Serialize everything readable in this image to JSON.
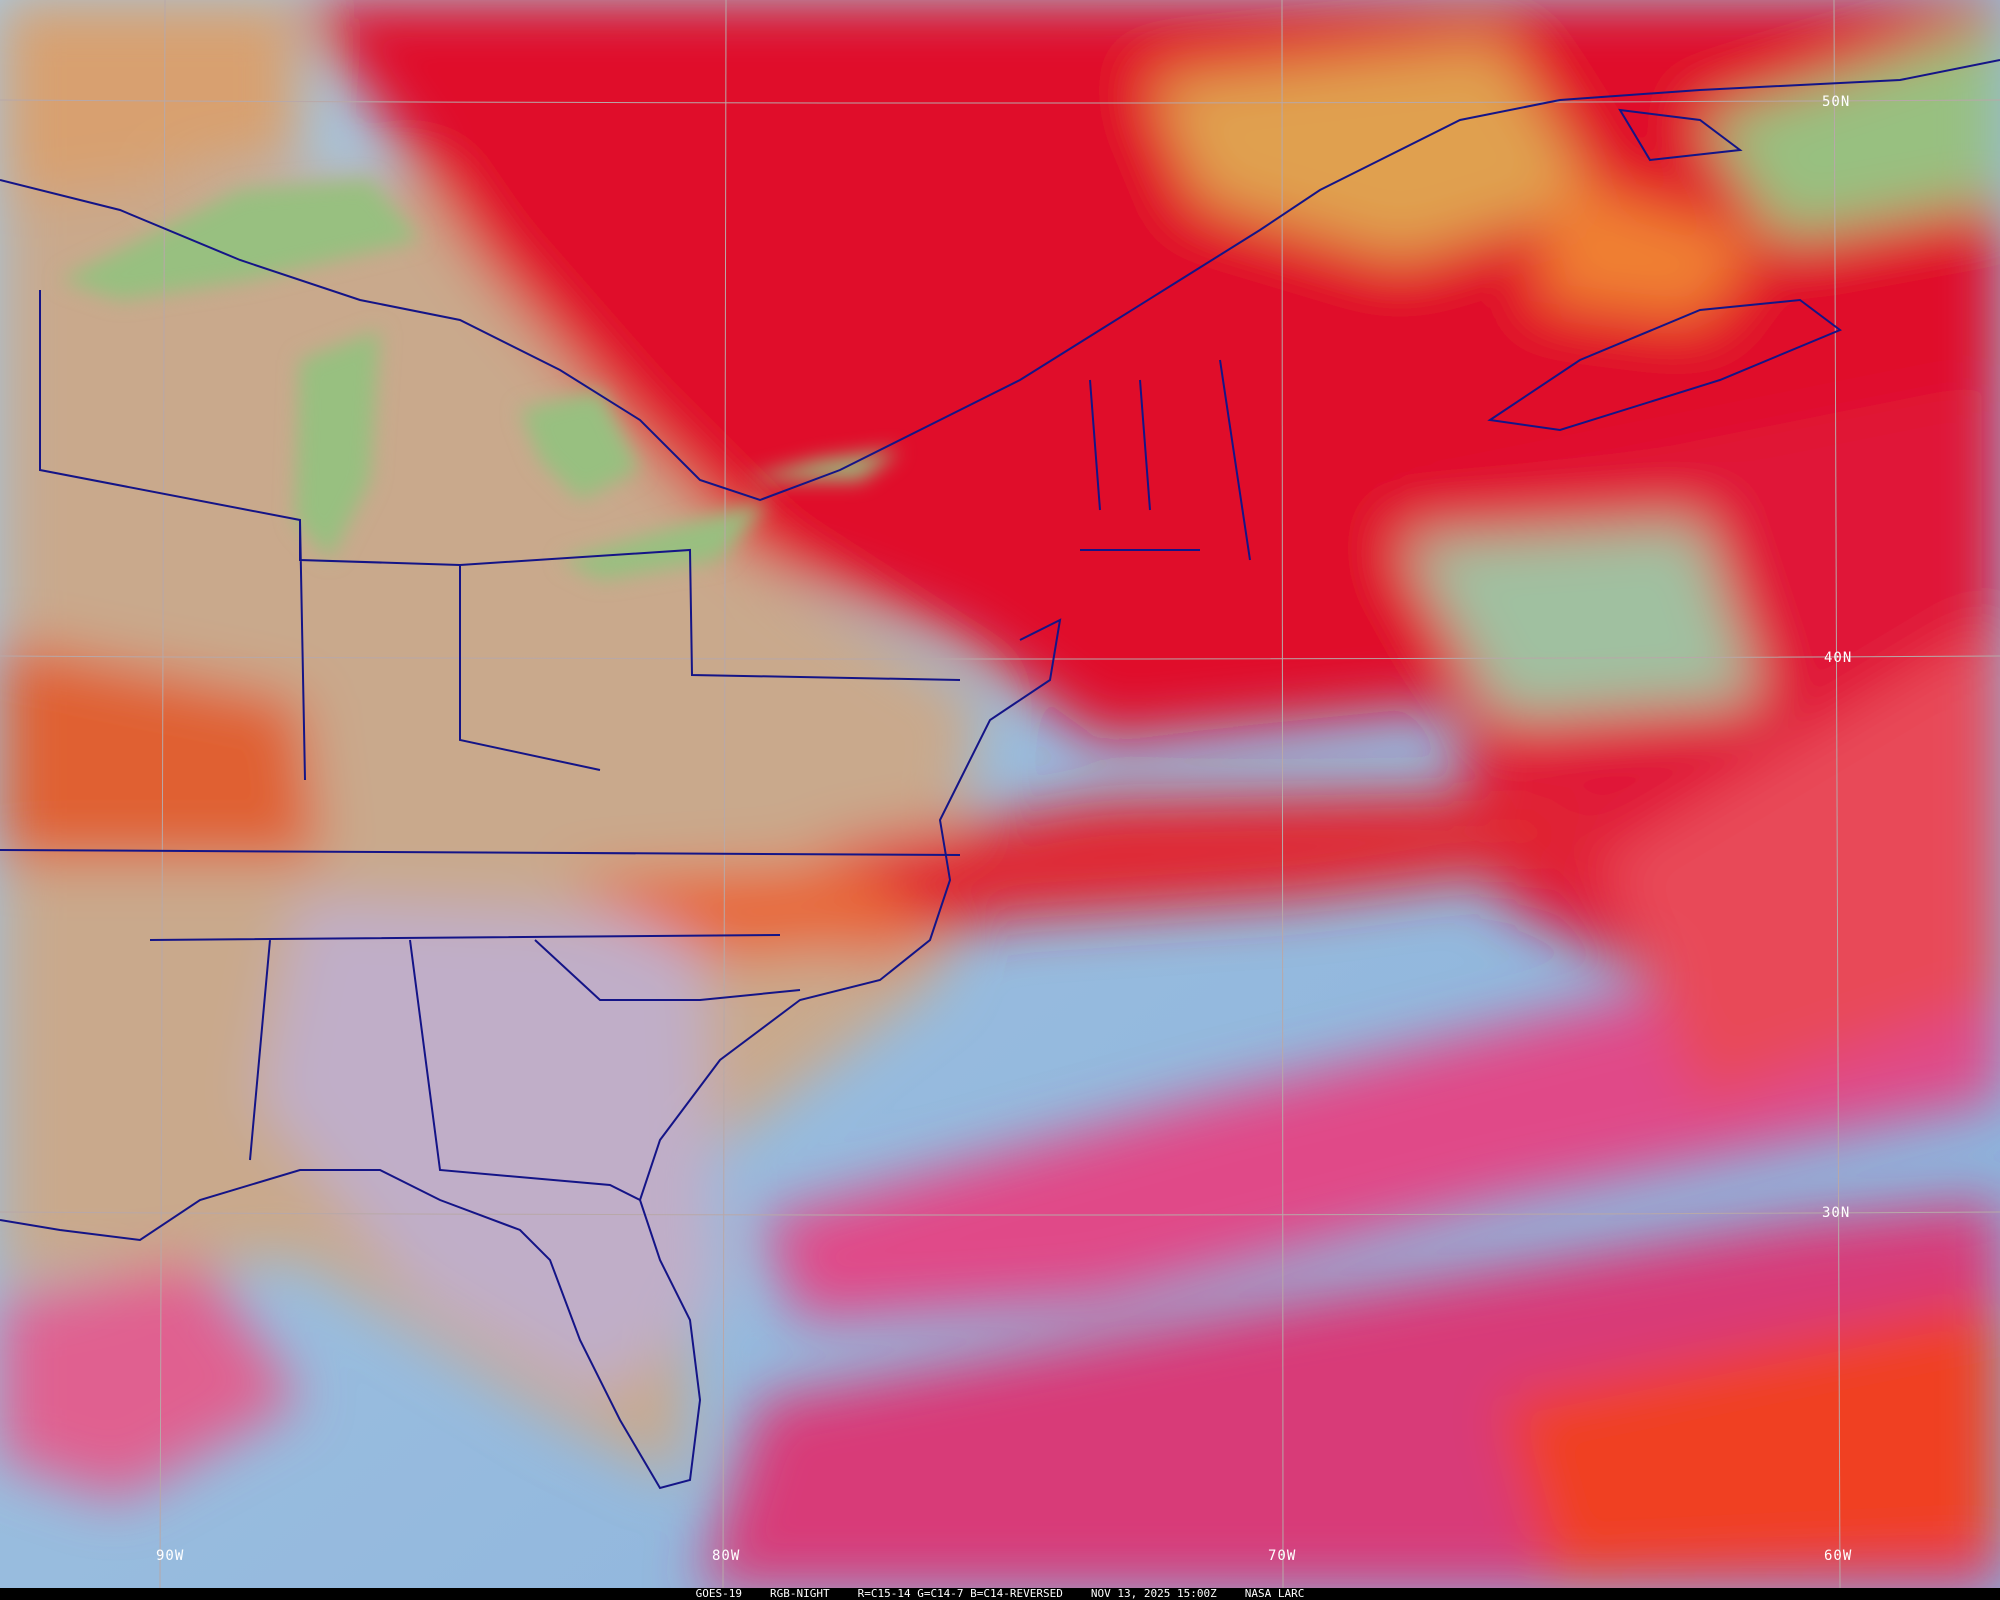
{
  "product": {
    "satellite": "GOES-19",
    "product_name": "RGB-NIGHT",
    "recipe": "R=C15-14 G=C14-7 B=C14-REVERSED",
    "datetime": "NOV 13, 2025 15:00Z",
    "source": "NASA LARC"
  },
  "grid": {
    "latitude_labels": [
      "50N",
      "40N",
      "30N"
    ],
    "longitude_labels": [
      "90W",
      "80W",
      "70W",
      "60W"
    ]
  },
  "colors": {
    "boundaries": "#141487",
    "gridlines": "#b8a8a8",
    "high_cloud": "#e0102a",
    "land": "#c8a888",
    "ocean_clear": "#90b8e0",
    "lakes": "#98c080",
    "low_cloud": "#e04080"
  }
}
